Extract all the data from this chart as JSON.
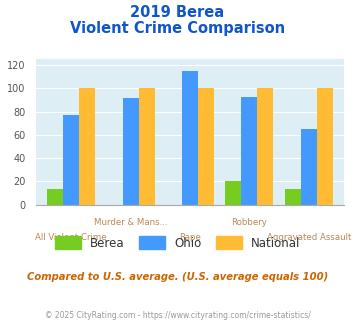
{
  "title_line1": "2019 Berea",
  "title_line2": "Violent Crime Comparison",
  "categories": [
    "All Violent Crime",
    "Murder & Mans...",
    "Rape",
    "Robbery",
    "Aggravated Assault"
  ],
  "berea": [
    13,
    0,
    0,
    20,
    13
  ],
  "ohio": [
    77,
    92,
    115,
    93,
    65
  ],
  "national": [
    100,
    100,
    100,
    100,
    100
  ],
  "berea_color": "#77cc22",
  "ohio_color": "#4499ff",
  "national_color": "#ffbb33",
  "ylim": [
    0,
    125
  ],
  "yticks": [
    0,
    20,
    40,
    60,
    80,
    100,
    120
  ],
  "bg_color": "#ddeef5",
  "subtitle_note": "Compared to U.S. average. (U.S. average equals 100)",
  "footer": "© 2025 CityRating.com - https://www.cityrating.com/crime-statistics/",
  "title_color": "#1155cc",
  "subtitle_color": "#cc6600",
  "footer_color": "#999999",
  "xlabel_color": "#bb8855"
}
